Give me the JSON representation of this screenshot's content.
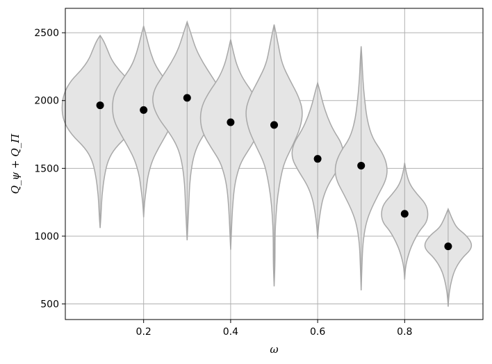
{
  "chart_data": {
    "type": "violin",
    "title": "",
    "xlabel": "ω",
    "ylabel": "Q_ψ + Q_Π",
    "xlim": [
      0.02,
      0.98
    ],
    "ylim": [
      385,
      2680
    ],
    "x_ticks": [
      0.2,
      0.4,
      0.6,
      0.8
    ],
    "x_tick_labels": [
      "0.2",
      "0.4",
      "0.6",
      "0.8"
    ],
    "y_ticks": [
      500,
      1000,
      1500,
      2000,
      2500
    ],
    "y_tick_labels": [
      "500",
      "1000",
      "1500",
      "2000",
      "2500"
    ],
    "grid": true,
    "violin_fill_color": "#e5e5e5",
    "violin_edge_color": "#a8a8a8",
    "marker_color": "#000000",
    "series": [
      {
        "x": 0.1,
        "mean": 1965,
        "min": 1060,
        "max": 2480,
        "profile": [
          [
            1060,
            0.0
          ],
          [
            1150,
            0.01
          ],
          [
            1300,
            0.02
          ],
          [
            1450,
            0.05
          ],
          [
            1560,
            0.09
          ],
          [
            1650,
            0.17
          ],
          [
            1750,
            0.33
          ],
          [
            1850,
            0.42
          ],
          [
            1960,
            0.44
          ],
          [
            2060,
            0.41
          ],
          [
            2150,
            0.33
          ],
          [
            2220,
            0.22
          ],
          [
            2300,
            0.13
          ],
          [
            2380,
            0.08
          ],
          [
            2440,
            0.04
          ],
          [
            2480,
            0.0
          ]
        ]
      },
      {
        "x": 0.2,
        "mean": 1930,
        "min": 1140,
        "max": 2550,
        "profile": [
          [
            1140,
            0.0
          ],
          [
            1250,
            0.01
          ],
          [
            1350,
            0.03
          ],
          [
            1450,
            0.05
          ],
          [
            1560,
            0.1
          ],
          [
            1650,
            0.17
          ],
          [
            1750,
            0.26
          ],
          [
            1850,
            0.34
          ],
          [
            1950,
            0.36
          ],
          [
            2050,
            0.34
          ],
          [
            2150,
            0.25
          ],
          [
            2250,
            0.14
          ],
          [
            2350,
            0.08
          ],
          [
            2450,
            0.04
          ],
          [
            2550,
            0.0
          ]
        ]
      },
      {
        "x": 0.3,
        "mean": 2020,
        "min": 970,
        "max": 2580,
        "profile": [
          [
            970,
            0.0
          ],
          [
            1100,
            0.01
          ],
          [
            1250,
            0.02
          ],
          [
            1400,
            0.03
          ],
          [
            1550,
            0.06
          ],
          [
            1660,
            0.11
          ],
          [
            1760,
            0.2
          ],
          [
            1870,
            0.33
          ],
          [
            1980,
            0.4
          ],
          [
            2080,
            0.38
          ],
          [
            2180,
            0.28
          ],
          [
            2280,
            0.18
          ],
          [
            2380,
            0.1
          ],
          [
            2480,
            0.05
          ],
          [
            2580,
            0.0
          ]
        ]
      },
      {
        "x": 0.4,
        "mean": 1840,
        "min": 900,
        "max": 2450,
        "profile": [
          [
            900,
            0.0
          ],
          [
            1050,
            0.01
          ],
          [
            1200,
            0.02
          ],
          [
            1350,
            0.04
          ],
          [
            1450,
            0.07
          ],
          [
            1550,
            0.12
          ],
          [
            1650,
            0.22
          ],
          [
            1760,
            0.32
          ],
          [
            1860,
            0.35
          ],
          [
            1960,
            0.33
          ],
          [
            2060,
            0.25
          ],
          [
            2160,
            0.14
          ],
          [
            2260,
            0.07
          ],
          [
            2360,
            0.03
          ],
          [
            2450,
            0.0
          ]
        ]
      },
      {
        "x": 0.5,
        "mean": 1820,
        "min": 630,
        "max": 2560,
        "profile": [
          [
            630,
            0.0
          ],
          [
            800,
            0.01
          ],
          [
            1000,
            0.01
          ],
          [
            1150,
            0.02
          ],
          [
            1300,
            0.04
          ],
          [
            1450,
            0.08
          ],
          [
            1550,
            0.12
          ],
          [
            1680,
            0.22
          ],
          [
            1800,
            0.3
          ],
          [
            1920,
            0.33
          ],
          [
            2030,
            0.28
          ],
          [
            2150,
            0.18
          ],
          [
            2270,
            0.09
          ],
          [
            2400,
            0.05
          ],
          [
            2500,
            0.02
          ],
          [
            2560,
            0.0
          ]
        ]
      },
      {
        "x": 0.6,
        "mean": 1570,
        "min": 980,
        "max": 2130,
        "profile": [
          [
            980,
            0.0
          ],
          [
            1080,
            0.01
          ],
          [
            1180,
            0.03
          ],
          [
            1280,
            0.06
          ],
          [
            1380,
            0.12
          ],
          [
            1480,
            0.22
          ],
          [
            1580,
            0.3
          ],
          [
            1680,
            0.28
          ],
          [
            1780,
            0.18
          ],
          [
            1880,
            0.11
          ],
          [
            1980,
            0.06
          ],
          [
            2060,
            0.03
          ],
          [
            2130,
            0.0
          ]
        ]
      },
      {
        "x": 0.7,
        "mean": 1520,
        "min": 600,
        "max": 2400,
        "profile": [
          [
            600,
            0.0
          ],
          [
            800,
            0.01
          ],
          [
            950,
            0.02
          ],
          [
            1080,
            0.05
          ],
          [
            1180,
            0.1
          ],
          [
            1300,
            0.19
          ],
          [
            1420,
            0.29
          ],
          [
            1520,
            0.3
          ],
          [
            1620,
            0.24
          ],
          [
            1720,
            0.13
          ],
          [
            1850,
            0.07
          ],
          [
            2000,
            0.04
          ],
          [
            2150,
            0.02
          ],
          [
            2300,
            0.01
          ],
          [
            2400,
            0.0
          ]
        ]
      },
      {
        "x": 0.8,
        "mean": 1165,
        "min": 680,
        "max": 1540,
        "profile": [
          [
            680,
            0.0
          ],
          [
            780,
            0.01
          ],
          [
            880,
            0.05
          ],
          [
            960,
            0.1
          ],
          [
            1040,
            0.17
          ],
          [
            1100,
            0.25
          ],
          [
            1170,
            0.27
          ],
          [
            1240,
            0.24
          ],
          [
            1310,
            0.14
          ],
          [
            1380,
            0.06
          ],
          [
            1460,
            0.02
          ],
          [
            1540,
            0.0
          ]
        ]
      },
      {
        "x": 0.9,
        "mean": 925,
        "min": 480,
        "max": 1200,
        "profile": [
          [
            480,
            0.0
          ],
          [
            580,
            0.01
          ],
          [
            680,
            0.04
          ],
          [
            760,
            0.08
          ],
          [
            840,
            0.16
          ],
          [
            900,
            0.26
          ],
          [
            950,
            0.27
          ],
          [
            1010,
            0.2
          ],
          [
            1060,
            0.1
          ],
          [
            1120,
            0.05
          ],
          [
            1200,
            0.0
          ]
        ]
      }
    ]
  }
}
